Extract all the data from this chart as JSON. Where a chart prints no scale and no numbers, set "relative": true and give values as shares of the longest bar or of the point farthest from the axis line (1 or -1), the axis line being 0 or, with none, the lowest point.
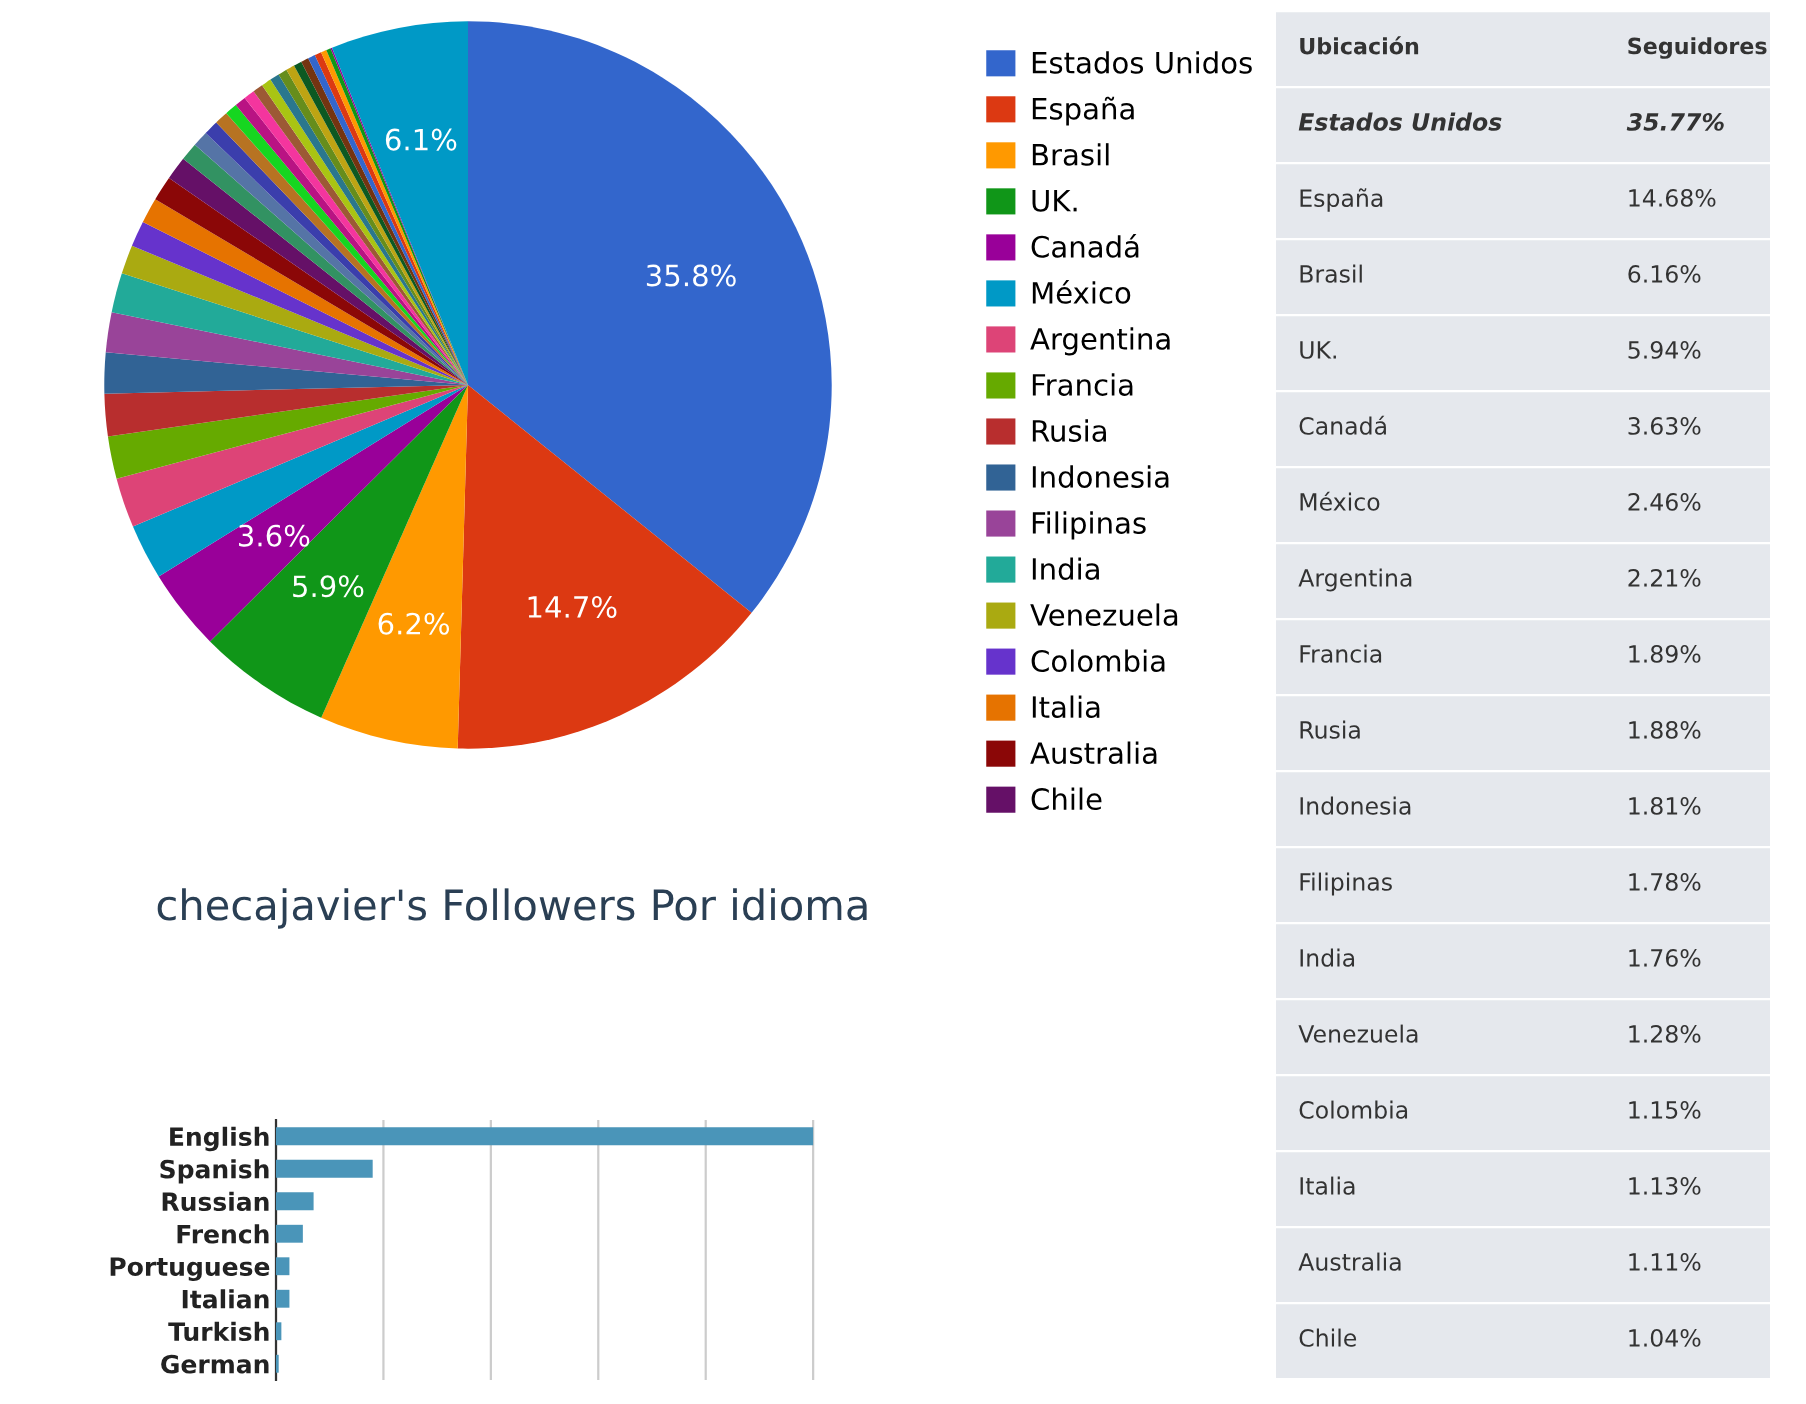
{
  "chart_data": [
    {
      "type": "pie",
      "categories": [
        "Estados Unidos",
        "España",
        "Brasil",
        "UK.",
        "Canadá",
        "México",
        "Argentina",
        "Francia",
        "Rusia",
        "Indonesia",
        "Filipinas",
        "India",
        "Venezuela",
        "Colombia",
        "Italia",
        "Australia",
        "Chile",
        null,
        null,
        null,
        null,
        null,
        null,
        null,
        null,
        null,
        null,
        null,
        null,
        null,
        null,
        null,
        null,
        null,
        null,
        null,
        null
      ],
      "values": [
        35.77,
        14.68,
        6.16,
        5.94,
        3.63,
        2.46,
        2.21,
        1.89,
        1.88,
        1.81,
        1.78,
        1.76,
        1.28,
        1.15,
        1.13,
        1.11,
        1.04,
        0.8,
        0.7,
        0.65,
        0.6,
        0.55,
        0.5,
        0.48,
        0.46,
        0.44,
        0.42,
        0.4,
        0.38,
        0.36,
        0.34,
        0.32,
        0.3,
        0.25,
        0.2,
        0.07,
        6.1
      ],
      "value_labels": [
        "35.8%",
        "14.7%",
        "6.2%",
        "5.9%",
        "3.6%",
        null,
        null,
        null,
        null,
        null,
        null,
        null,
        null,
        null,
        null,
        null,
        null,
        null,
        null,
        null,
        null,
        null,
        null,
        null,
        null,
        null,
        null,
        null,
        null,
        null,
        null,
        null,
        null,
        null,
        null,
        null,
        "6.1%"
      ],
      "colors": [
        "#3366cc",
        "#dc3912",
        "#ff9900",
        "#109618",
        "#990099",
        "#0099c6",
        "#dd4477",
        "#66aa00",
        "#b82e2e",
        "#316395",
        "#994499",
        "#22aa99",
        "#aaaa11",
        "#6633cc",
        "#e67300",
        "#8b0707",
        "#651067",
        "#329262",
        "#5574a6",
        "#3b3eac",
        "#b77322",
        "#16d620",
        "#b91383",
        "#f4359e",
        "#9c5935",
        "#a9c413",
        "#2a778d",
        "#668d1c",
        "#bea413",
        "#0c5922",
        "#743411",
        "#3366cc",
        "#dc3912",
        "#ff9900",
        "#109618",
        "#990099",
        "#0099c6"
      ],
      "legend": "right"
    },
    {
      "type": "other",
      "annotations": [
        "Ubicación",
        "Seguidores",
        "Estados Unidos",
        "35.77%",
        "España",
        "14.68%",
        "Brasil",
        "6.16%",
        "UK.",
        "5.94%",
        "Canadá",
        "3.63%",
        "México",
        "2.46%",
        "Argentina",
        "2.21%",
        "Francia",
        "1.89%",
        "Rusia",
        "1.88%",
        "Indonesia",
        "1.81%",
        "Filipinas",
        "1.78%",
        "India",
        "1.76%",
        "Venezuela",
        "1.28%",
        "Colombia",
        "1.15%",
        "Italia",
        "1.13%",
        "Australia",
        "1.11%",
        "Chile",
        "1.04%"
      ]
    },
    {
      "type": "bar",
      "orientation": "horizontal",
      "relative": true,
      "title": "checajavier's Followers Por idioma",
      "categories": [
        "English",
        "Spanish",
        "Russian",
        "French",
        "Portuguese",
        "Italian",
        "Turkish",
        "German"
      ],
      "values": [
        1,
        0.18,
        0.07,
        0.05,
        0.025,
        0.025,
        0.01,
        0.005
      ],
      "color": "#4a95b9",
      "grid": "x"
    }
  ]
}
